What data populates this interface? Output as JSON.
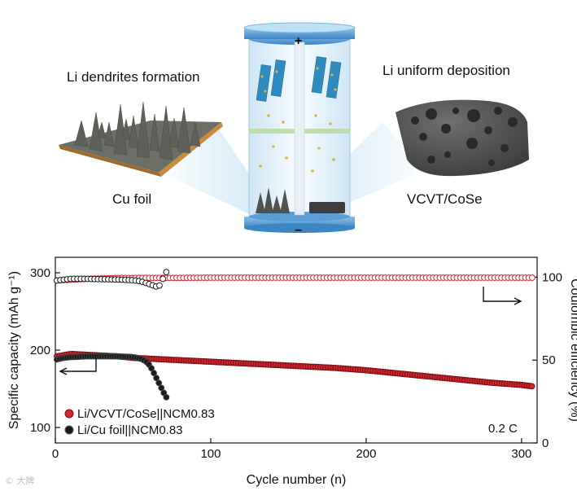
{
  "schematic": {
    "left_title": "Li dendrites formation",
    "left_label": "Cu foil",
    "right_title": "Li uniform deposition",
    "right_label": "VCVT/CoSe",
    "cell_plus": "+",
    "cell_minus": "−"
  },
  "chart_data": {
    "type": "scatter",
    "xlabel": "Cycle number (n)",
    "ylabel_left": "Specific capacity (mAh g⁻¹)",
    "ylabel_right": "Coulombic efficiency (%)",
    "xlim": [
      0,
      310
    ],
    "ylim_left": [
      80,
      320
    ],
    "ylim_right": [
      0,
      112
    ],
    "x_ticks": [
      0,
      100,
      200,
      300
    ],
    "y_ticks_left": [
      100,
      200,
      300
    ],
    "y_ticks_right": [
      0,
      50,
      100
    ],
    "annotation": "0.2 C",
    "legend_position": "bottom-left",
    "series": [
      {
        "name": "Li/VCVT/CoSe||NCM0.83",
        "color": "#d22630",
        "axis": "left",
        "x": [
          1,
          10,
          20,
          30,
          40,
          50,
          60,
          70,
          80,
          100,
          120,
          140,
          160,
          180,
          200,
          220,
          240,
          260,
          280,
          300,
          308
        ],
        "values": [
          192,
          195,
          194,
          193,
          192,
          190,
          189,
          188,
          187,
          185,
          183,
          181,
          179,
          177,
          174,
          170,
          166,
          162,
          158,
          155,
          153
        ]
      },
      {
        "name": "Li/Cu foil||NCM0.83",
        "color": "#1a1a1a",
        "axis": "left",
        "x": [
          1,
          5,
          10,
          20,
          30,
          40,
          50,
          55,
          58,
          60,
          62,
          64,
          66,
          68,
          70,
          72
        ],
        "values": [
          188,
          190,
          191,
          192,
          192,
          192,
          191,
          189,
          186,
          182,
          176,
          168,
          160,
          152,
          144,
          137
        ]
      },
      {
        "name": "Li/VCVT/CoSe||NCM0.83 CE",
        "color": "#d22630",
        "axis": "right",
        "x": [
          1,
          20,
          40,
          60,
          80,
          100,
          120,
          140,
          160,
          180,
          200,
          220,
          240,
          260,
          280,
          300,
          308
        ],
        "values": [
          98,
          99,
          99.5,
          99.6,
          99.6,
          99.7,
          99.7,
          99.7,
          99.7,
          99.7,
          99.7,
          99.7,
          99.7,
          99.7,
          99.7,
          99.7,
          99.7
        ]
      },
      {
        "name": "Li/Cu foil||NCM0.83 CE",
        "color": "#1a1a1a",
        "axis": "right",
        "x": [
          1,
          10,
          20,
          30,
          40,
          50,
          55,
          60,
          63,
          66,
          68,
          70,
          72
        ],
        "values": [
          98,
          99,
          99,
          98.8,
          98.6,
          98.2,
          97.5,
          96,
          95,
          94,
          96,
          101,
          104
        ]
      }
    ]
  }
}
